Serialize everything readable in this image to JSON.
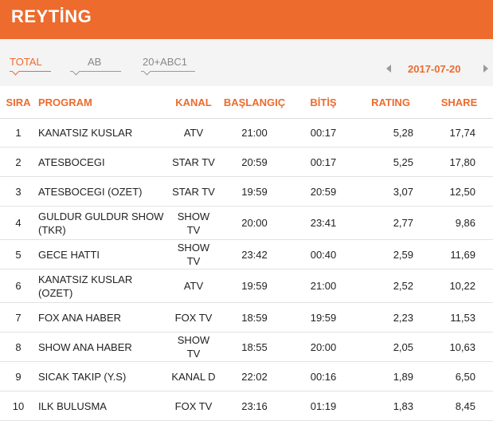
{
  "header": {
    "title": "REYTİNG"
  },
  "tabs": [
    {
      "label": "TOTAL",
      "active": true
    },
    {
      "label": "AB",
      "active": false
    },
    {
      "label": "20+ABC1",
      "active": false
    }
  ],
  "date_nav": {
    "date": "2017-07-20",
    "prev_icon": "chevron-left",
    "next_icon": "chevron-right"
  },
  "table": {
    "headers": {
      "sira": "SIRA",
      "program": "PROGRAM",
      "kanal": "KANAL",
      "baslangic": "BAŞLANGIÇ",
      "bitis": "BİTİŞ",
      "rating": "RATING",
      "share": "SHARE"
    },
    "rows": [
      {
        "sira": "1",
        "program": "KANATSIZ KUSLAR",
        "kanal": "ATV",
        "baslangic": "21:00",
        "bitis": "00:17",
        "rating": "5,28",
        "share": "17,74"
      },
      {
        "sira": "2",
        "program": "ATESBOCEGI",
        "kanal": "STAR TV",
        "baslangic": "20:59",
        "bitis": "00:17",
        "rating": "5,25",
        "share": "17,80"
      },
      {
        "sira": "3",
        "program": "ATESBOCEGI (OZET)",
        "kanal": "STAR TV",
        "baslangic": "19:59",
        "bitis": "20:59",
        "rating": "3,07",
        "share": "12,50"
      },
      {
        "sira": "4",
        "program": "GULDUR GULDUR SHOW (TKR)",
        "kanal": "SHOW TV",
        "baslangic": "20:00",
        "bitis": "23:41",
        "rating": "2,77",
        "share": "9,86"
      },
      {
        "sira": "5",
        "program": "GECE HATTI",
        "kanal": "SHOW TV",
        "baslangic": "23:42",
        "bitis": "00:40",
        "rating": "2,59",
        "share": "11,69"
      },
      {
        "sira": "6",
        "program": "KANATSIZ KUSLAR (OZET)",
        "kanal": "ATV",
        "baslangic": "19:59",
        "bitis": "21:00",
        "rating": "2,52",
        "share": "10,22"
      },
      {
        "sira": "7",
        "program": "FOX ANA HABER",
        "kanal": "FOX TV",
        "baslangic": "18:59",
        "bitis": "19:59",
        "rating": "2,23",
        "share": "11,53"
      },
      {
        "sira": "8",
        "program": "SHOW ANA HABER",
        "kanal": "SHOW TV",
        "baslangic": "18:55",
        "bitis": "20:00",
        "rating": "2,05",
        "share": "10,63"
      },
      {
        "sira": "9",
        "program": "SICAK TAKIP (Y.S)",
        "kanal": "KANAL D",
        "baslangic": "22:02",
        "bitis": "00:16",
        "rating": "1,89",
        "share": "6,50"
      },
      {
        "sira": "10",
        "program": "ILK BULUSMA",
        "kanal": "FOX TV",
        "baslangic": "23:16",
        "bitis": "01:19",
        "rating": "1,83",
        "share": "8,45"
      }
    ]
  },
  "colors": {
    "accent": "#ec6b2d",
    "toolbar_bg": "#f4f4f4"
  }
}
